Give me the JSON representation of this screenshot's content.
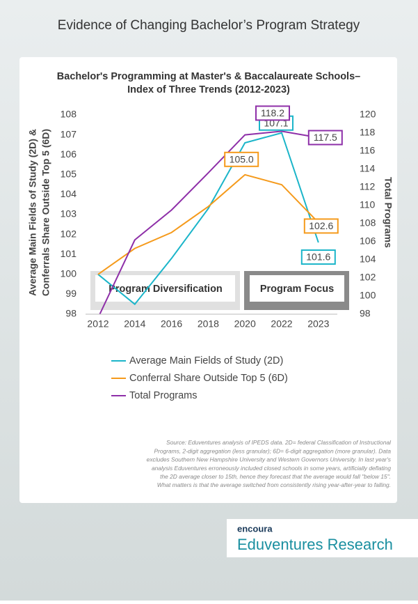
{
  "header": {
    "title": "Evidence of Changing Bachelor’s Program Strategy"
  },
  "chart_data": {
    "type": "line",
    "title": [
      "Bachelor's Programming at Master's & Baccalaureate Schools–",
      "Index of Three Trends (2012-2023)"
    ],
    "y_label": [
      "Average Main Fields of Study (2D) &",
      "Conferrals Share Outside Top 5 (6D)"
    ],
    "y2_label": "Total Programs",
    "categories": [
      "2012",
      "2014",
      "2016",
      "2018",
      "2020",
      "2022",
      "2023"
    ],
    "ylim": [
      98,
      108
    ],
    "yticks": [
      98,
      99,
      100,
      101,
      102,
      103,
      104,
      105,
      106,
      107,
      108
    ],
    "y2lim": [
      98,
      120
    ],
    "y2ticks": [
      98,
      100,
      102,
      104,
      106,
      108,
      110,
      112,
      114,
      116,
      118,
      120
    ],
    "series": [
      {
        "name": "Average Main Fields of Study (2D)",
        "color": "#1bb5c9",
        "values": [
          100,
          98.5,
          100.8,
          103.3,
          106.6,
          107.1,
          101.6
        ],
        "value_labels": [
          null,
          null,
          null,
          null,
          null,
          "107.1",
          "101.6"
        ]
      },
      {
        "name": "Conferral Share Outside Top 5 (6D)",
        "color": "#f59a1b",
        "values": [
          100,
          101.3,
          102.1,
          103.4,
          105.0,
          104.5,
          102.6
        ],
        "value_labels": [
          null,
          null,
          null,
          null,
          "105.0",
          null,
          "102.6"
        ]
      },
      {
        "name": "Total Programs",
        "color": "#8e2fa8",
        "axis": "y2",
        "values": [
          97.6,
          106.2,
          109.5,
          113.6,
          117.8,
          118.2,
          117.5
        ],
        "value_labels": [
          null,
          null,
          null,
          null,
          null,
          "118.2",
          "117.5"
        ]
      }
    ],
    "annotations": [
      "Program Diversification",
      "Program Focus"
    ],
    "source": [
      "Source: Eduventures analysis of IPEDS data. 2D= federal Classification of Instructional",
      "Programs, 2-digit aggregation (less granular); 6D= 6-digit aggregation (more granular). Data",
      "excludes Southern New Hampshire University and Western Governors University. In last year's",
      "analysis Eduventures erroneously included closed schools in some years, artificially deflating",
      "the 2D average closer to 15th, hence they forecast that the average would fall \"below 15\".",
      "What matters is that the average switched from consistently rising year-after-year to falling."
    ]
  },
  "logo": {
    "brand": "encoura",
    "name": "Eduventures",
    "suffix": "Research"
  }
}
